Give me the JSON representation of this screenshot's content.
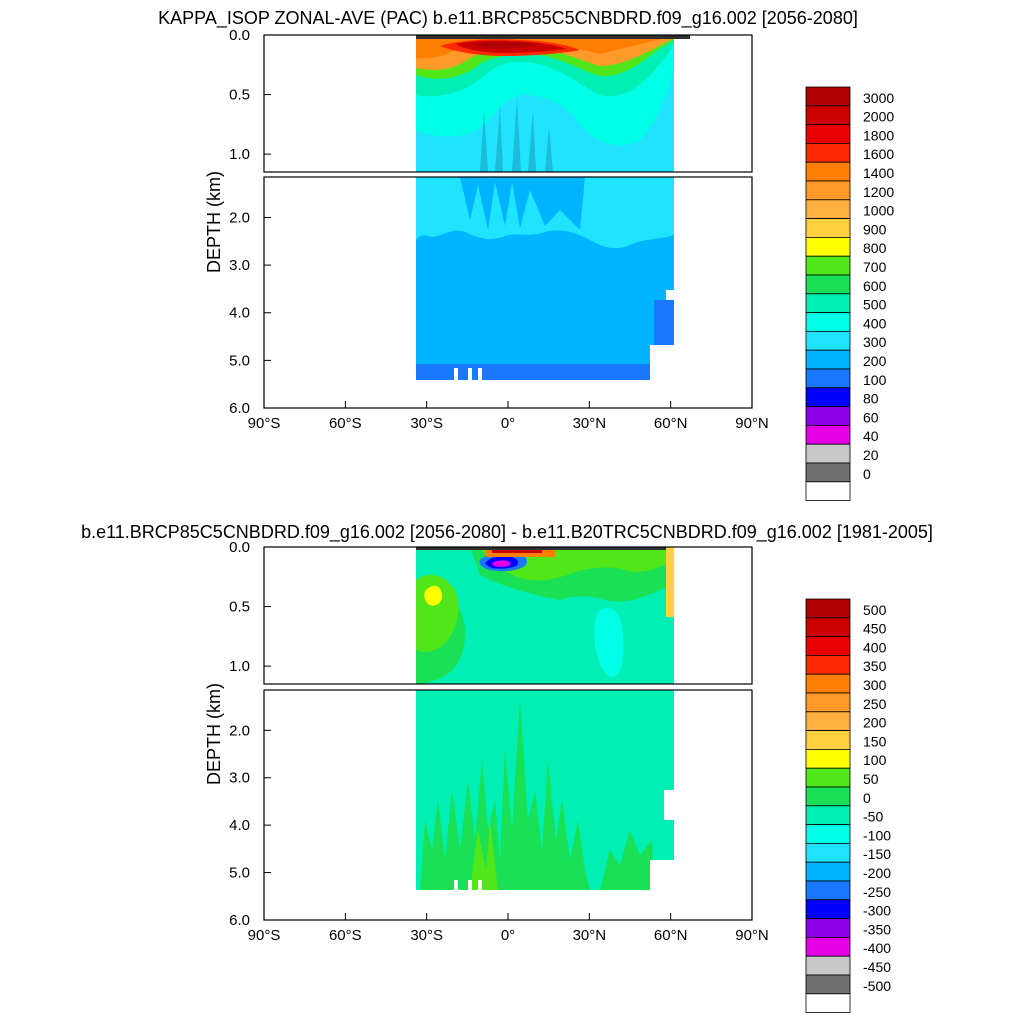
{
  "chart_data": [
    {
      "type": "heatmap",
      "title": "KAPPA_ISOP ZONAL-AVE (PAC) b.e11.BRCP85C5CNBDRD.f09_g16.002 [2056-2080]",
      "ylabel": "DEPTH (km)",
      "xlabel": "",
      "xlim": [
        -90,
        90
      ],
      "ylim_upper_panel": [
        0.0,
        1.15
      ],
      "ylim_lower_panel": [
        1.15,
        6.0
      ],
      "x_ticks": [
        "90°S",
        "60°S",
        "30°S",
        "0°",
        "30°N",
        "60°N",
        "90°N"
      ],
      "y_ticks_upper": [
        "0.0",
        "0.5",
        "1.0"
      ],
      "y_ticks_lower": [
        "2.0",
        "3.0",
        "4.0",
        "5.0",
        "6.0"
      ],
      "data_extent": {
        "lat_min": -34,
        "lat_max": 62,
        "max_depth_km": 5.4
      },
      "grid": false,
      "legend_position": "right",
      "colorbar_labels": [
        "3000",
        "2000",
        "1800",
        "1600",
        "1400",
        "1200",
        "1000",
        "900",
        "800",
        "700",
        "600",
        "500",
        "400",
        "300",
        "200",
        "100",
        "80",
        "60",
        "40",
        "20",
        "0"
      ],
      "colorbar_colors": [
        "#b10000",
        "#cc0000",
        "#ea0000",
        "#ff2a00",
        "#ff7f00",
        "#ff9a2a",
        "#ffb040",
        "#ffd040",
        "#ffff00",
        "#50e61a",
        "#19e055",
        "#00efb4",
        "#00ffe6",
        "#20e4ff",
        "#00b4ff",
        "#1a78ff",
        "#0000ff",
        "#8c00e6",
        "#e600e6",
        "#c8c8c8",
        "#707070",
        "#ffffff"
      ],
      "dominant_regions": [
        {
          "region": "surface maximum near equator (0-0.2 km)",
          "value_range": "1600-3000"
        },
        {
          "region": "upper ocean subtropics (0-0.4 km)",
          "value_range": "600-1400"
        },
        {
          "region": "thermocline (0.3-1.1 km)",
          "value_range": "400-500"
        },
        {
          "region": "deep ocean (1.2-5.2 km)",
          "value_range": "300-400"
        },
        {
          "region": "bottom layer (~5.3 km)",
          "value_range": "200-300"
        }
      ]
    },
    {
      "type": "heatmap",
      "title": "b.e11.BRCP85C5CNBDRD.f09_g16.002 [2056-2080] - b.e11.B20TRC5CNBDRD.f09_g16.002 [1981-2005]",
      "ylabel": "DEPTH (km)",
      "xlabel": "",
      "xlim": [
        -90,
        90
      ],
      "ylim_upper_panel": [
        0.0,
        1.15
      ],
      "ylim_lower_panel": [
        1.15,
        6.0
      ],
      "x_ticks": [
        "90°S",
        "60°S",
        "30°S",
        "0°",
        "30°N",
        "60°N",
        "90°N"
      ],
      "y_ticks_upper": [
        "0.0",
        "0.5",
        "1.0"
      ],
      "y_ticks_lower": [
        "2.0",
        "3.0",
        "4.0",
        "5.0",
        "6.0"
      ],
      "data_extent": {
        "lat_min": -34,
        "lat_max": 62,
        "max_depth_km": 5.4
      },
      "grid": false,
      "legend_position": "right",
      "colorbar_labels": [
        "500",
        "450",
        "400",
        "350",
        "300",
        "250",
        "200",
        "150",
        "100",
        "50",
        "0",
        "-50",
        "-100",
        "-150",
        "-200",
        "-250",
        "-300",
        "-350",
        "-400",
        "-450",
        "-500"
      ],
      "colorbar_colors": [
        "#b10000",
        "#cc0000",
        "#ea0000",
        "#ff2a00",
        "#ff7f00",
        "#ff9a2a",
        "#ffb040",
        "#ffd040",
        "#ffff00",
        "#50e61a",
        "#19e055",
        "#00efb4",
        "#00ffe6",
        "#20e4ff",
        "#00b4ff",
        "#1a78ff",
        "#0000ff",
        "#8c00e6",
        "#e600e6",
        "#c8c8c8",
        "#707070",
        "#ffffff"
      ],
      "dominant_regions": [
        {
          "region": "equatorial upper ocean (0.1-0.2 km)",
          "value_range": "-500 to -200"
        },
        {
          "region": "surface near equator (0-0.1 km)",
          "value_range": "200-500"
        },
        {
          "region": "southern subtropics (0.3-0.6 km)",
          "value_range": "0-150"
        },
        {
          "region": "interior and deep ocean",
          "value_range": "-50-0"
        },
        {
          "region": "deep plumes (2-5.4 km)",
          "value_range": "0-50"
        },
        {
          "region": "northern thermocline (0.4-1.1 km)",
          "value_range": "-100 to -50"
        }
      ]
    }
  ]
}
